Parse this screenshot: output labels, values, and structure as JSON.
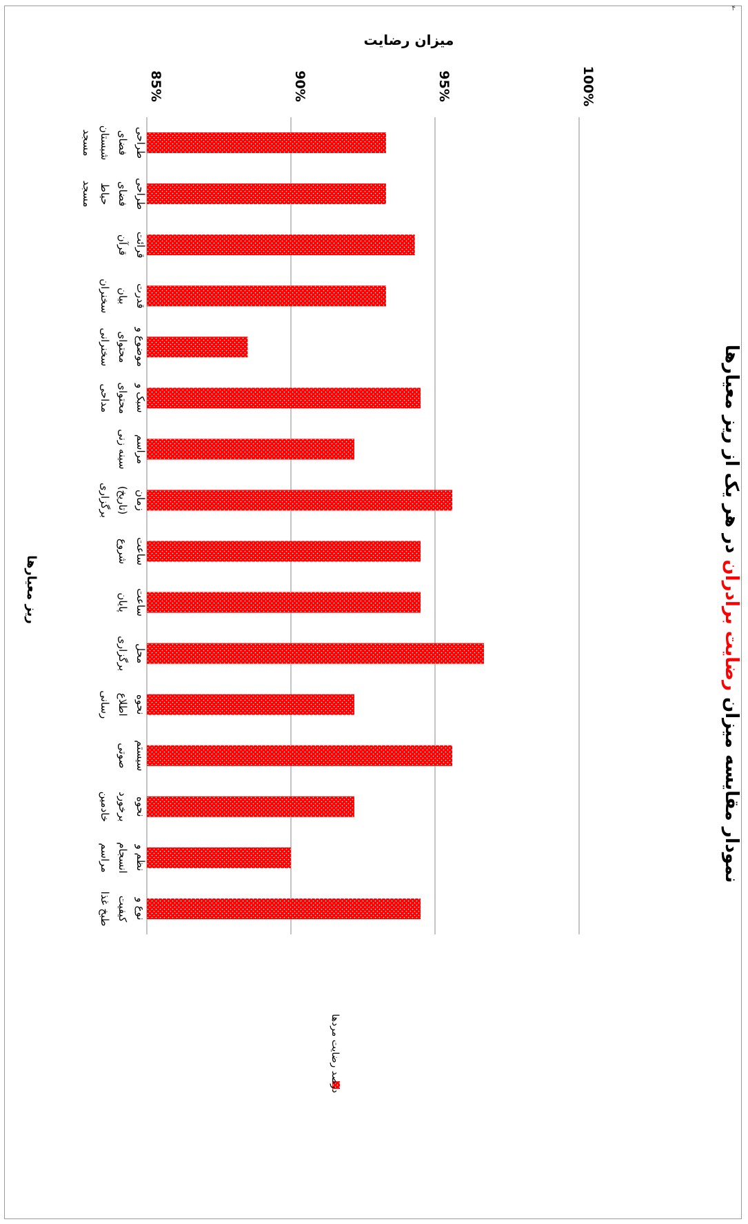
{
  "page_number": "۴",
  "chart_data": {
    "type": "bar",
    "title_parts": [
      {
        "text": "نمودار مقایسه میزان ",
        "color": "#000000"
      },
      {
        "text": "رضایت برادران",
        "color": "#ff0000"
      },
      {
        "text": "  در هر یک از ریز معیارها",
        "color": "#000000"
      }
    ],
    "ylabel": "میزان رضایت",
    "xlabel": "ریز معیارها",
    "ylim": [
      85,
      100
    ],
    "yticks": [
      85,
      90,
      95,
      100
    ],
    "ytick_labels": [
      "85%",
      "90%",
      "95%",
      "100%"
    ],
    "grid": true,
    "legend_position": "right",
    "bar_color": "#ff0000",
    "series": [
      {
        "name": "درصد رضایت مردها",
        "values": [
          93.3,
          93.3,
          94.3,
          93.3,
          88.5,
          94.5,
          92.2,
          95.6,
          94.5,
          94.5,
          96.7,
          92.2,
          95.6,
          92.2,
          90.0,
          94.5
        ]
      }
    ],
    "categories": [
      [
        "طراحی",
        "فضای",
        "شبستان",
        "مسجد"
      ],
      [
        "طراحی",
        "فضای",
        "حیاط",
        "مسجد"
      ],
      [
        "قرائت",
        "قرآن"
      ],
      [
        "قدرت",
        "بیان",
        "سخنران"
      ],
      [
        "موضوع و",
        "محتوای",
        "سخنرانی"
      ],
      [
        "سبک و",
        "محتوای",
        "مداحی"
      ],
      [
        "مراسم",
        "سینه زنی"
      ],
      [
        "زمان",
        "(تاریخ)",
        "برگزاری"
      ],
      [
        "ساعت",
        "شروع"
      ],
      [
        "ساعت",
        "پایان"
      ],
      [
        "محل",
        "برگزاری"
      ],
      [
        "نحوه",
        "اطلاع",
        "رسانی"
      ],
      [
        "سیستم",
        "صوتی"
      ],
      [
        "نحوه",
        "برخورد",
        "خادمین"
      ],
      [
        "نظم و",
        "انسجام",
        "مراسم"
      ],
      [
        "نوع و",
        "کیفیت",
        "طبخ غذا"
      ]
    ]
  }
}
